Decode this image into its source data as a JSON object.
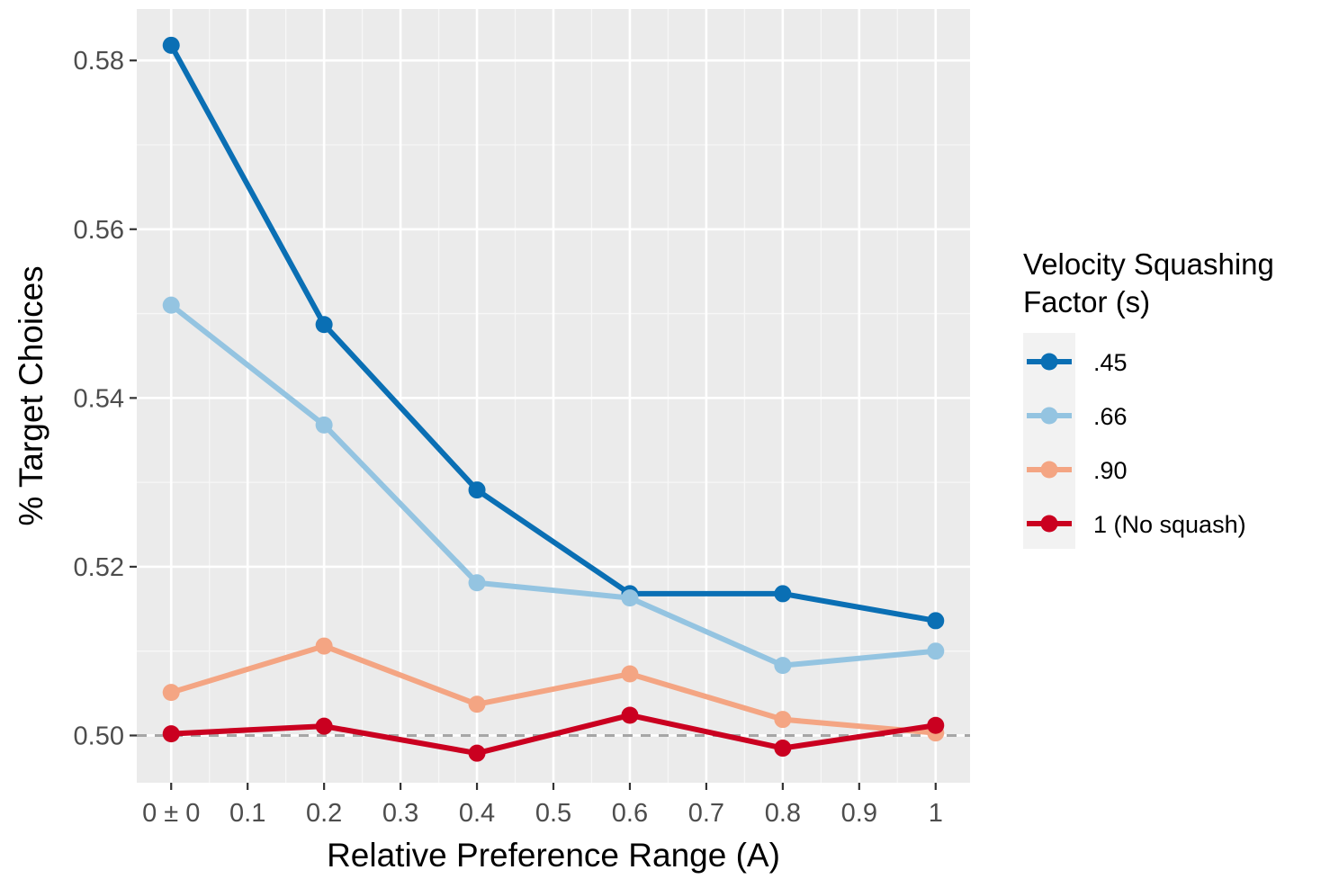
{
  "chart_data": {
    "type": "line",
    "title": "",
    "xlabel": "Relative Preference Range (A)",
    "ylabel": "% Target Choices",
    "xlim": [
      -0.045,
      1.045
    ],
    "ylim": [
      0.4944,
      0.5861
    ],
    "x_ticks": [
      {
        "value": 0,
        "label": "0 ± 0"
      },
      {
        "value": 0.1,
        "label": "0.1"
      },
      {
        "value": 0.2,
        "label": "0.2"
      },
      {
        "value": 0.3,
        "label": "0.3"
      },
      {
        "value": 0.4,
        "label": "0.4"
      },
      {
        "value": 0.5,
        "label": "0.5"
      },
      {
        "value": 0.6,
        "label": "0.6"
      },
      {
        "value": 0.7,
        "label": "0.7"
      },
      {
        "value": 0.8,
        "label": "0.8"
      },
      {
        "value": 0.9,
        "label": "0.9"
      },
      {
        "value": 1,
        "label": "1"
      }
    ],
    "x_minor_ticks": [
      0.05,
      0.15,
      0.25,
      0.35,
      0.45,
      0.55,
      0.65,
      0.75,
      0.85,
      0.95
    ],
    "y_ticks": [
      {
        "value": 0.5,
        "label": "0.50"
      },
      {
        "value": 0.52,
        "label": "0.52"
      },
      {
        "value": 0.54,
        "label": "0.54"
      },
      {
        "value": 0.56,
        "label": "0.56"
      },
      {
        "value": 0.58,
        "label": "0.58"
      }
    ],
    "y_minor_ticks": [
      0.51,
      0.53,
      0.55,
      0.57
    ],
    "reference_line": {
      "y": 0.5,
      "style": "dashed",
      "color": "#a6a6a6"
    },
    "grid": true,
    "x": [
      0,
      0.2,
      0.4,
      0.6,
      0.8,
      1.0
    ],
    "series": [
      {
        "name": ".45",
        "color": "#0a6fb4",
        "values": [
          0.5818,
          0.5487,
          0.5291,
          0.5168,
          0.5168,
          0.5136
        ]
      },
      {
        "name": ".66",
        "color": "#94c4e1",
        "values": [
          0.551,
          0.5368,
          0.5181,
          0.5163,
          0.5083,
          0.51
        ]
      },
      {
        "name": ".90",
        "color": "#f4a583",
        "values": [
          0.5051,
          0.5106,
          0.5037,
          0.5073,
          0.5019,
          0.5003
        ]
      },
      {
        "name": "1 (No squash)",
        "color": "#ca0020",
        "values": [
          0.5002,
          0.5011,
          0.4979,
          0.5024,
          0.4985,
          0.5012
        ]
      }
    ],
    "legend": {
      "title_lines": [
        "Velocity Squashing",
        "Factor (s)"
      ],
      "position": "right"
    }
  },
  "colors": {
    "panel_background": "#ebebeb",
    "grid_major": "#ffffff",
    "grid_minor": "#f7f7f7",
    "legend_key_background": "#f2f2f2"
  }
}
